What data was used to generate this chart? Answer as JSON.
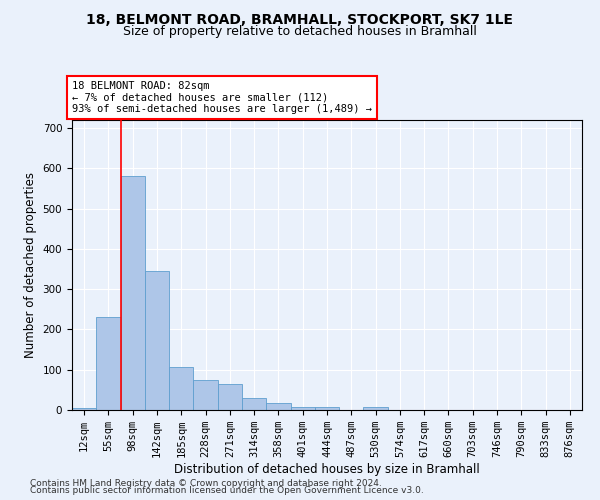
{
  "title_line1": "18, BELMONT ROAD, BRAMHALL, STOCKPORT, SK7 1LE",
  "title_line2": "Size of property relative to detached houses in Bramhall",
  "xlabel": "Distribution of detached houses by size in Bramhall",
  "ylabel": "Number of detached properties",
  "bin_labels": [
    "12sqm",
    "55sqm",
    "98sqm",
    "142sqm",
    "185sqm",
    "228sqm",
    "271sqm",
    "314sqm",
    "358sqm",
    "401sqm",
    "444sqm",
    "487sqm",
    "530sqm",
    "574sqm",
    "617sqm",
    "660sqm",
    "703sqm",
    "746sqm",
    "790sqm",
    "833sqm",
    "876sqm"
  ],
  "bar_heights": [
    5,
    230,
    580,
    345,
    108,
    75,
    65,
    30,
    18,
    8,
    8,
    0,
    8,
    0,
    0,
    0,
    0,
    0,
    0,
    0,
    0
  ],
  "bar_color": "#aec6e8",
  "bar_edge_color": "#5f9fcf",
  "ylim": [
    0,
    720
  ],
  "yticks": [
    0,
    100,
    200,
    300,
    400,
    500,
    600,
    700
  ],
  "annotation_box_text": "18 BELMONT ROAD: 82sqm\n← 7% of detached houses are smaller (112)\n93% of semi-detached houses are larger (1,489) →",
  "footer_line1": "Contains HM Land Registry data © Crown copyright and database right 2024.",
  "footer_line2": "Contains public sector information licensed under the Open Government Licence v3.0.",
  "bg_color": "#eaf1fb",
  "plot_bg_color": "#eaf1fb",
  "grid_color": "#ffffff",
  "red_line_x": 1.5,
  "title_fontsize": 10,
  "subtitle_fontsize": 9,
  "label_fontsize": 8.5,
  "tick_fontsize": 7.5,
  "footer_fontsize": 6.5
}
